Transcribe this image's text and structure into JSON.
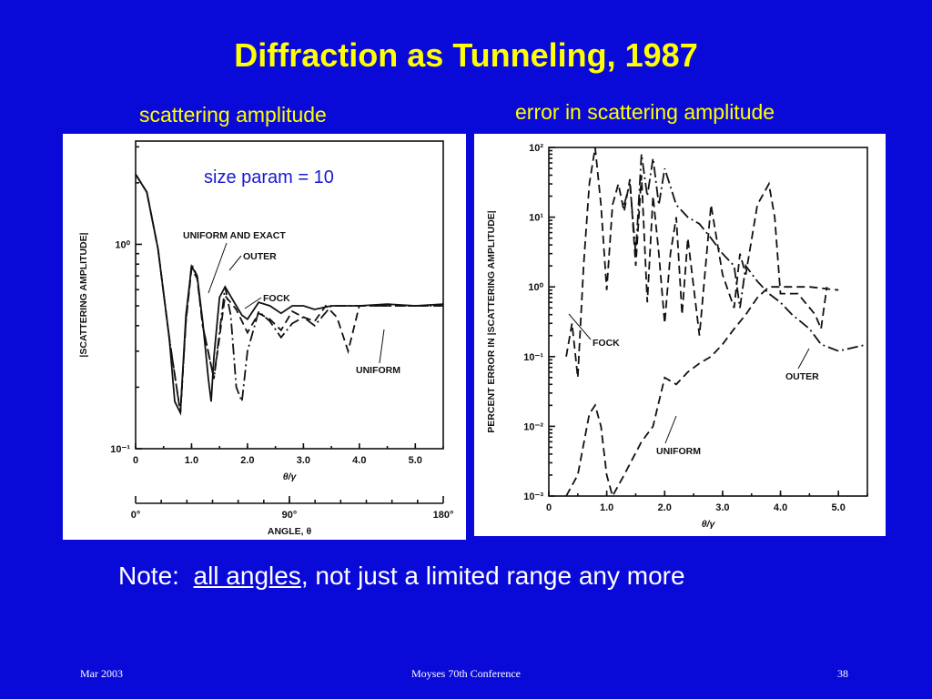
{
  "slide": {
    "title": "Diffraction as Tunneling, 1987",
    "left_heading": "scattering amplitude",
    "right_heading": "error in scattering amplitude",
    "note_prefix": "Note:",
    "note_underlined": "all angles",
    "note_suffix": ", not just a limited range any more",
    "footer_left": "Mar 2003",
    "footer_center": "Moyses 70th Conference",
    "footer_right": "38"
  },
  "chart_data": [
    {
      "type": "line",
      "ylabel": "|SCATTERING AMPLITUDE|",
      "xlabel": "θ/γ",
      "secondary_xlabel": "ANGLE, θ",
      "y_scale": "log",
      "xlim": [
        0,
        5.5
      ],
      "ylim": [
        0.1,
        3.2
      ],
      "x_ticks": [
        "0",
        "1.0",
        "2.0",
        "3.0",
        "4.0",
        "5.0"
      ],
      "y_ticks": [
        "10⁰",
        "10⁻¹"
      ],
      "secondary_x_ticks": [
        "0°",
        "90°",
        "180°"
      ],
      "inset_text": "size param = 10",
      "annotations": [
        "UNIFORM AND EXACT",
        "OUTER",
        "FOCK",
        "UNIFORM"
      ],
      "series": [
        {
          "name": "UNIFORM AND EXACT",
          "style": "solid",
          "x": [
            0,
            0.2,
            0.4,
            0.6,
            0.7,
            0.8,
            0.9,
            1.0,
            1.1,
            1.2,
            1.3,
            1.35,
            1.4,
            1.5,
            1.6,
            1.8,
            1.9,
            2.0,
            2.2,
            2.4,
            2.6,
            2.8,
            3.0,
            3.2,
            3.5,
            4.0,
            4.5,
            5.0,
            5.5
          ],
          "y": [
            2.2,
            1.8,
            0.95,
            0.35,
            0.17,
            0.15,
            0.45,
            0.78,
            0.7,
            0.42,
            0.22,
            0.17,
            0.28,
            0.55,
            0.62,
            0.5,
            0.45,
            0.43,
            0.52,
            0.5,
            0.46,
            0.5,
            0.5,
            0.48,
            0.5,
            0.5,
            0.51,
            0.5,
            0.51
          ]
        },
        {
          "name": "OUTER",
          "style": "dash-dot",
          "x": [
            0,
            0.2,
            0.4,
            0.6,
            0.8,
            0.9,
            1.0,
            1.1,
            1.2,
            1.4,
            1.6,
            1.7,
            1.8,
            1.9,
            2.0,
            2.2,
            2.4,
            2.6,
            2.8,
            3.0,
            3.2,
            3.5,
            4.0,
            4.5,
            5.0,
            5.5
          ],
          "y": [
            2.2,
            1.8,
            0.95,
            0.35,
            0.15,
            0.42,
            0.8,
            0.7,
            0.4,
            0.22,
            0.62,
            0.45,
            0.2,
            0.17,
            0.3,
            0.47,
            0.42,
            0.35,
            0.41,
            0.44,
            0.4,
            0.5,
            0.5,
            0.5,
            0.5,
            0.5
          ]
        },
        {
          "name": "FOCK",
          "style": "dashed",
          "x": [
            0,
            0.2,
            0.4,
            0.6,
            0.8,
            0.9,
            1.0,
            1.1,
            1.2,
            1.4,
            1.6,
            1.8,
            2.0,
            2.2,
            2.4,
            2.6,
            2.8,
            3.0,
            3.2,
            3.4,
            3.6,
            3.8,
            4.0,
            4.5,
            5.0,
            5.5
          ],
          "y": [
            2.2,
            1.8,
            0.95,
            0.35,
            0.15,
            0.42,
            0.76,
            0.68,
            0.4,
            0.22,
            0.56,
            0.48,
            0.37,
            0.46,
            0.43,
            0.38,
            0.47,
            0.44,
            0.42,
            0.5,
            0.44,
            0.3,
            0.5,
            0.5,
            0.5,
            0.5
          ]
        }
      ]
    },
    {
      "type": "line",
      "ylabel": "PERCENT ERROR IN |SCATTERING AMPLITUDE|",
      "xlabel": "θ/γ",
      "y_scale": "log",
      "xlim": [
        0,
        5.5
      ],
      "ylim": [
        0.001,
        100
      ],
      "x_ticks": [
        "0",
        "1.0",
        "2.0",
        "3.0",
        "4.0",
        "5.0"
      ],
      "y_ticks": [
        "10²",
        "10¹",
        "10⁰",
        "10⁻¹",
        "10⁻²",
        "10⁻³"
      ],
      "annotations": [
        "FOCK",
        "OUTER",
        "UNIFORM"
      ],
      "series": [
        {
          "name": "FOCK",
          "style": "dashed",
          "x": [
            0.3,
            0.4,
            0.5,
            0.6,
            0.7,
            0.8,
            0.9,
            1.0,
            1.1,
            1.2,
            1.3,
            1.4,
            1.5,
            1.6,
            1.7,
            1.8,
            1.9,
            2.0,
            2.1,
            2.2,
            2.3,
            2.4,
            2.6,
            2.8,
            3.0,
            3.2,
            3.3,
            3.4,
            3.6,
            3.8,
            3.9,
            4.0,
            4.3,
            4.6,
            4.7,
            4.8
          ],
          "y": [
            0.1,
            0.3,
            0.05,
            2,
            30,
            100,
            15,
            0.9,
            15,
            30,
            12,
            35,
            2,
            40,
            0.6,
            20,
            3,
            0.3,
            3,
            10,
            0.4,
            5,
            0.2,
            15,
            1.5,
            0.5,
            3,
            1.5,
            15,
            30,
            10,
            0.8,
            0.8,
            0.4,
            0.25,
            1
          ]
        },
        {
          "name": "OUTER",
          "style": "dash-dot",
          "x": [
            1.3,
            1.4,
            1.5,
            1.6,
            1.7,
            1.8,
            1.9,
            2.0,
            2.2,
            2.4,
            2.6,
            2.8,
            3.0,
            3.2,
            3.3,
            3.4,
            3.6,
            3.8,
            4.0,
            4.2,
            4.5,
            4.7,
            5.0,
            5.5
          ],
          "y": [
            15,
            30,
            3,
            80,
            20,
            70,
            15,
            50,
            15,
            10,
            8,
            5,
            3,
            2,
            0.5,
            2,
            1.2,
            0.8,
            0.6,
            0.4,
            0.25,
            0.15,
            0.12,
            0.15
          ]
        },
        {
          "name": "UNIFORM",
          "style": "dashed",
          "x": [
            0.3,
            0.5,
            0.7,
            0.8,
            0.9,
            1.0,
            1.1,
            1.3,
            1.6,
            1.8,
            2.0,
            2.2,
            2.4,
            2.6,
            2.8,
            3.0,
            3.2,
            3.4,
            3.6,
            3.8,
            4.0,
            4.5,
            5.0
          ],
          "y": [
            0.001,
            0.002,
            0.015,
            0.02,
            0.01,
            0.002,
            0.001,
            0.002,
            0.006,
            0.01,
            0.05,
            0.04,
            0.06,
            0.08,
            0.1,
            0.15,
            0.25,
            0.4,
            0.7,
            1.0,
            1.0,
            1.0,
            0.9
          ]
        }
      ]
    }
  ]
}
